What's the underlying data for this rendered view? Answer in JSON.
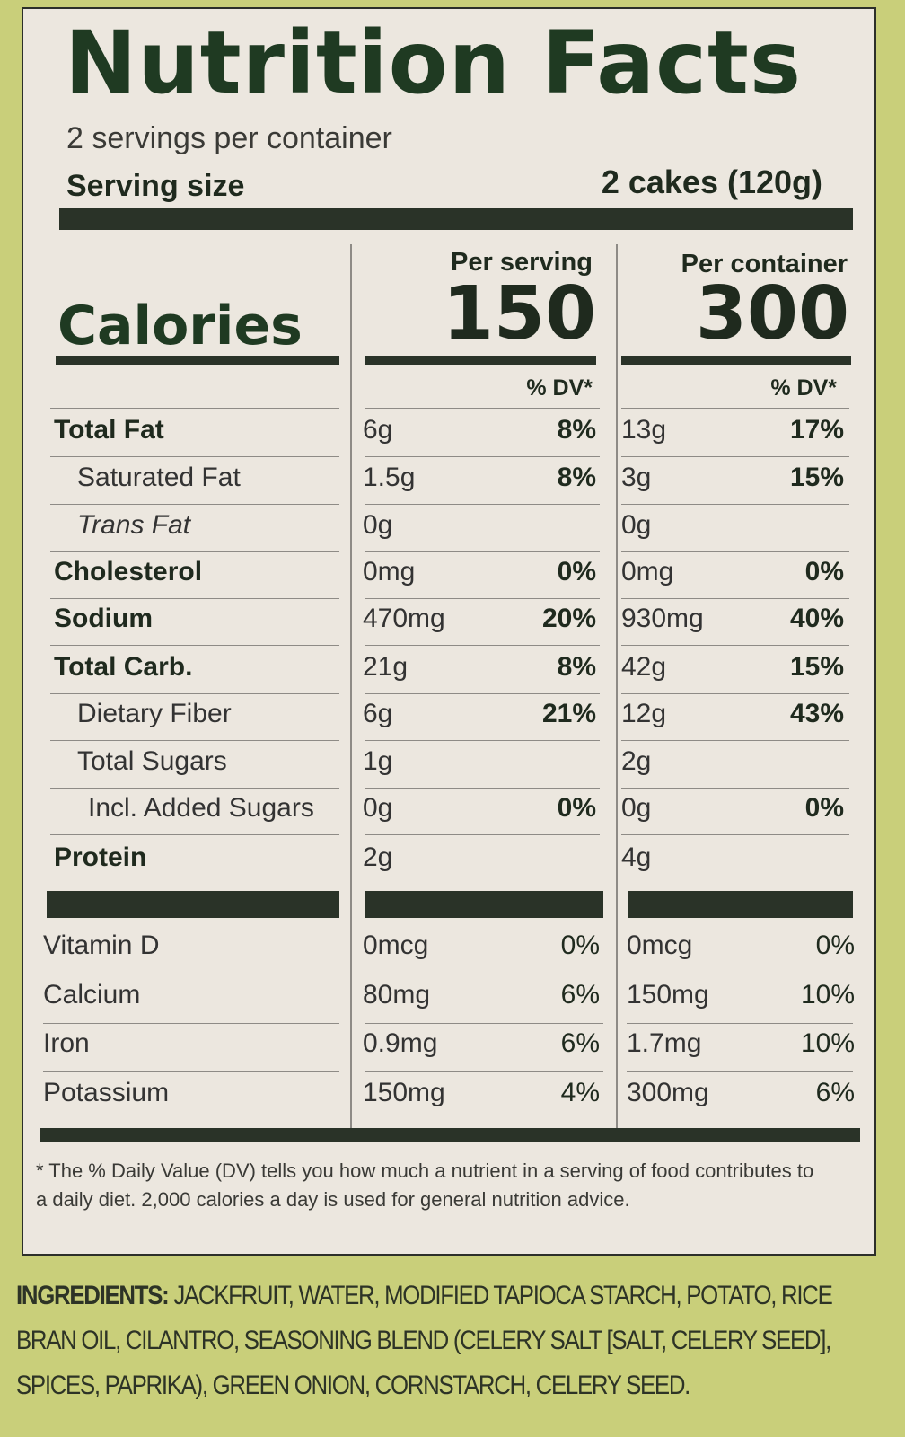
{
  "title": "Nutrition Facts",
  "servings_per_container": "2 servings per container",
  "serving_size_label": "Serving size",
  "serving_size_value": "2 cakes (120g)",
  "calories_label": "Calories",
  "col_per_serving": "Per serving",
  "col_per_container": "Per container",
  "calories_serving": "150",
  "calories_container": "300",
  "dv_header": "% DV*",
  "nutrients": [
    {
      "name": "Total Fat",
      "style": "bold",
      "s_amt": "6g",
      "s_dv": "8%",
      "c_amt": "13g",
      "c_dv": "17%"
    },
    {
      "name": "Saturated Fat",
      "style": "sub",
      "s_amt": "1.5g",
      "s_dv": "8%",
      "c_amt": "3g",
      "c_dv": "15%"
    },
    {
      "name": "Trans Fat",
      "style": "sub-italic",
      "s_amt": "0g",
      "s_dv": "",
      "c_amt": "0g",
      "c_dv": ""
    },
    {
      "name": "Cholesterol",
      "style": "bold",
      "s_amt": "0mg",
      "s_dv": "0%",
      "c_amt": "0mg",
      "c_dv": "0%"
    },
    {
      "name": "Sodium",
      "style": "bold",
      "s_amt": "470mg",
      "s_dv": "20%",
      "c_amt": "930mg",
      "c_dv": "40%"
    },
    {
      "name": "Total Carb.",
      "style": "bold",
      "s_amt": "21g",
      "s_dv": "8%",
      "c_amt": "42g",
      "c_dv": "15%"
    },
    {
      "name": "Dietary Fiber",
      "style": "sub",
      "s_amt": "6g",
      "s_dv": "21%",
      "c_amt": "12g",
      "c_dv": "43%"
    },
    {
      "name": "Total Sugars",
      "style": "sub",
      "s_amt": "1g",
      "s_dv": "",
      "c_amt": "2g",
      "c_dv": ""
    },
    {
      "name": "Incl. Added Sugars",
      "style": "sub2",
      "s_amt": "0g",
      "s_dv": "0%",
      "c_amt": "0g",
      "c_dv": "0%"
    },
    {
      "name": "Protein",
      "style": "bold",
      "s_amt": "2g",
      "s_dv": "",
      "c_amt": "4g",
      "c_dv": ""
    }
  ],
  "vitamins": [
    {
      "name": "Vitamin D",
      "s_amt": "0mcg",
      "s_dv": "0%",
      "c_amt": "0mcg",
      "c_dv": "0%"
    },
    {
      "name": "Calcium",
      "s_amt": "80mg",
      "s_dv": "6%",
      "c_amt": "150mg",
      "c_dv": "10%"
    },
    {
      "name": "Iron",
      "s_amt": "0.9mg",
      "s_dv": "6%",
      "c_amt": "1.7mg",
      "c_dv": "10%"
    },
    {
      "name": "Potassium",
      "s_amt": "150mg",
      "s_dv": "4%",
      "c_amt": "300mg",
      "c_dv": "6%"
    }
  ],
  "footnote": "* The % Daily Value (DV) tells you how much a nutrient in a serving of food contributes to a daily diet. 2,000 calories a day is used for general nutrition advice.",
  "ingredients_label": "INGREDIENTS:",
  "ingredients_text": "JACKFRUIT, WATER, MODIFIED TAPIOCA STARCH, POTATO, RICE BRAN OIL, CILANTRO, SEASONING BLEND (CELERY SALT [SALT, CELERY SEED], SPICES, PAPRIKA), GREEN ONION, CORNSTARCH, CELERY SEED.",
  "colors": {
    "background": "#c9cf7a",
    "label": "#ece7df",
    "ink": "#1f2a1e"
  }
}
